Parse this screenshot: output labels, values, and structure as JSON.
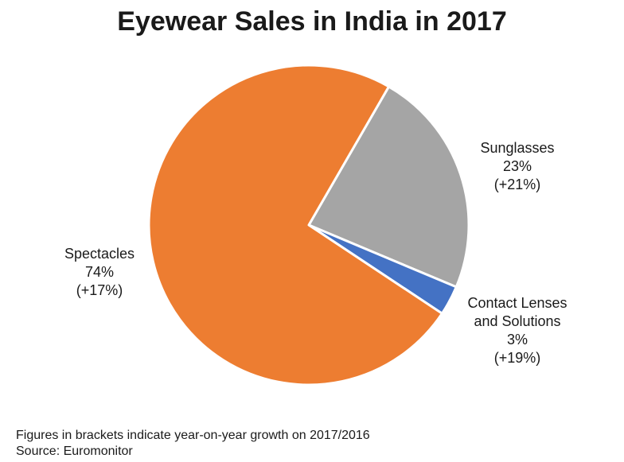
{
  "chart_data": {
    "type": "pie",
    "title": "Eyewear Sales in India in 2017",
    "slices": [
      {
        "label": "Sunglasses",
        "label_lines": [
          "Sunglasses"
        ],
        "value": 23,
        "value_label": "23%",
        "growth": "(+21%)",
        "color": "#A5A5A5"
      },
      {
        "label": "Contact Lenses and Solutions",
        "label_lines": [
          "Contact Lenses",
          "and Solutions"
        ],
        "value": 3,
        "value_label": "3%",
        "growth": "(+19%)",
        "color": "#4472C4"
      },
      {
        "label": "Spectacles",
        "label_lines": [
          "Spectacles"
        ],
        "value": 74,
        "value_label": "74%",
        "growth": "(+17%)",
        "color": "#ED7D31"
      }
    ]
  },
  "footnotes": {
    "note": "Figures in brackets indicate year-on-year growth on 2017/2016",
    "source": "Source: Euromonitor"
  }
}
